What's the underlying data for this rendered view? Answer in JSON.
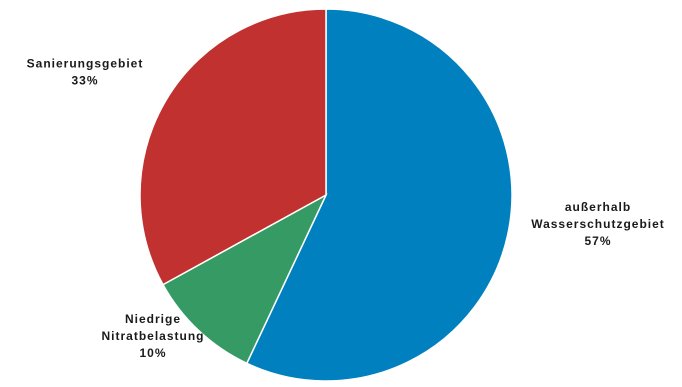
{
  "chart_data": {
    "type": "pie",
    "start_angle_deg": 0,
    "direction": "clockwise",
    "slices": [
      {
        "label": [
          "außerhalb",
          "Wasserschutzgebiet"
        ],
        "percent_label": "57%",
        "value": 57,
        "color": "#0080bf"
      },
      {
        "label": [
          "Niedrige",
          "Nitratbelastung"
        ],
        "percent_label": "10%",
        "value": 10,
        "color": "#359a64"
      },
      {
        "label": [
          "Sanierungsgebiet"
        ],
        "percent_label": "33%",
        "value": 33,
        "color": "#c0312f"
      }
    ]
  }
}
